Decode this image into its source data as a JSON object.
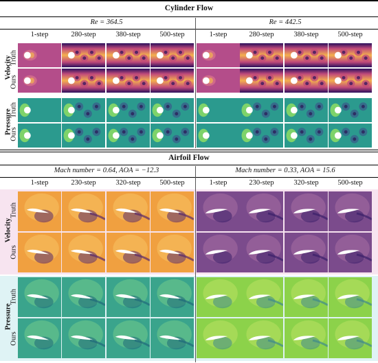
{
  "cylinder": {
    "title": "Cylinder Flow",
    "cond_left": "Re = 364.5",
    "cond_right": "Re = 442.5",
    "steps": [
      "1-step",
      "280-step",
      "380-step",
      "500-step",
      "1-step",
      "280-step",
      "380-step",
      "500-step"
    ],
    "rows": {
      "velocity": "Velocity",
      "pressure": "Pressure",
      "truth": "Truth",
      "ours": "Ours"
    }
  },
  "airfoil": {
    "title": "Airfoil Flow",
    "cond_left": "Mach number = 0.64, AOA = −12.3",
    "cond_right": "Mach number = 0.33, AOA = 15.6",
    "steps": [
      "1-step",
      "230-step",
      "320-step",
      "500-step",
      "1-step",
      "230-step",
      "320-step",
      "500-step"
    ],
    "rows": {
      "velocity": "Velocity",
      "pressure": "Pressure",
      "truth": "Truth",
      "ours": "Ours"
    }
  },
  "colors": {
    "velocity_low": "#2a0f5c",
    "velocity_mid": "#c04a7a",
    "velocity_high": "#f4b04e",
    "pressure_base": "#2b9a8e",
    "pressure_light": "#7ed36a",
    "airfoil_vel_left": "#f0a040",
    "airfoil_vel_right": "#7b4b8c",
    "airfoil_pres_left": "#3aa48c",
    "airfoil_pres_right": "#8cd24a"
  }
}
